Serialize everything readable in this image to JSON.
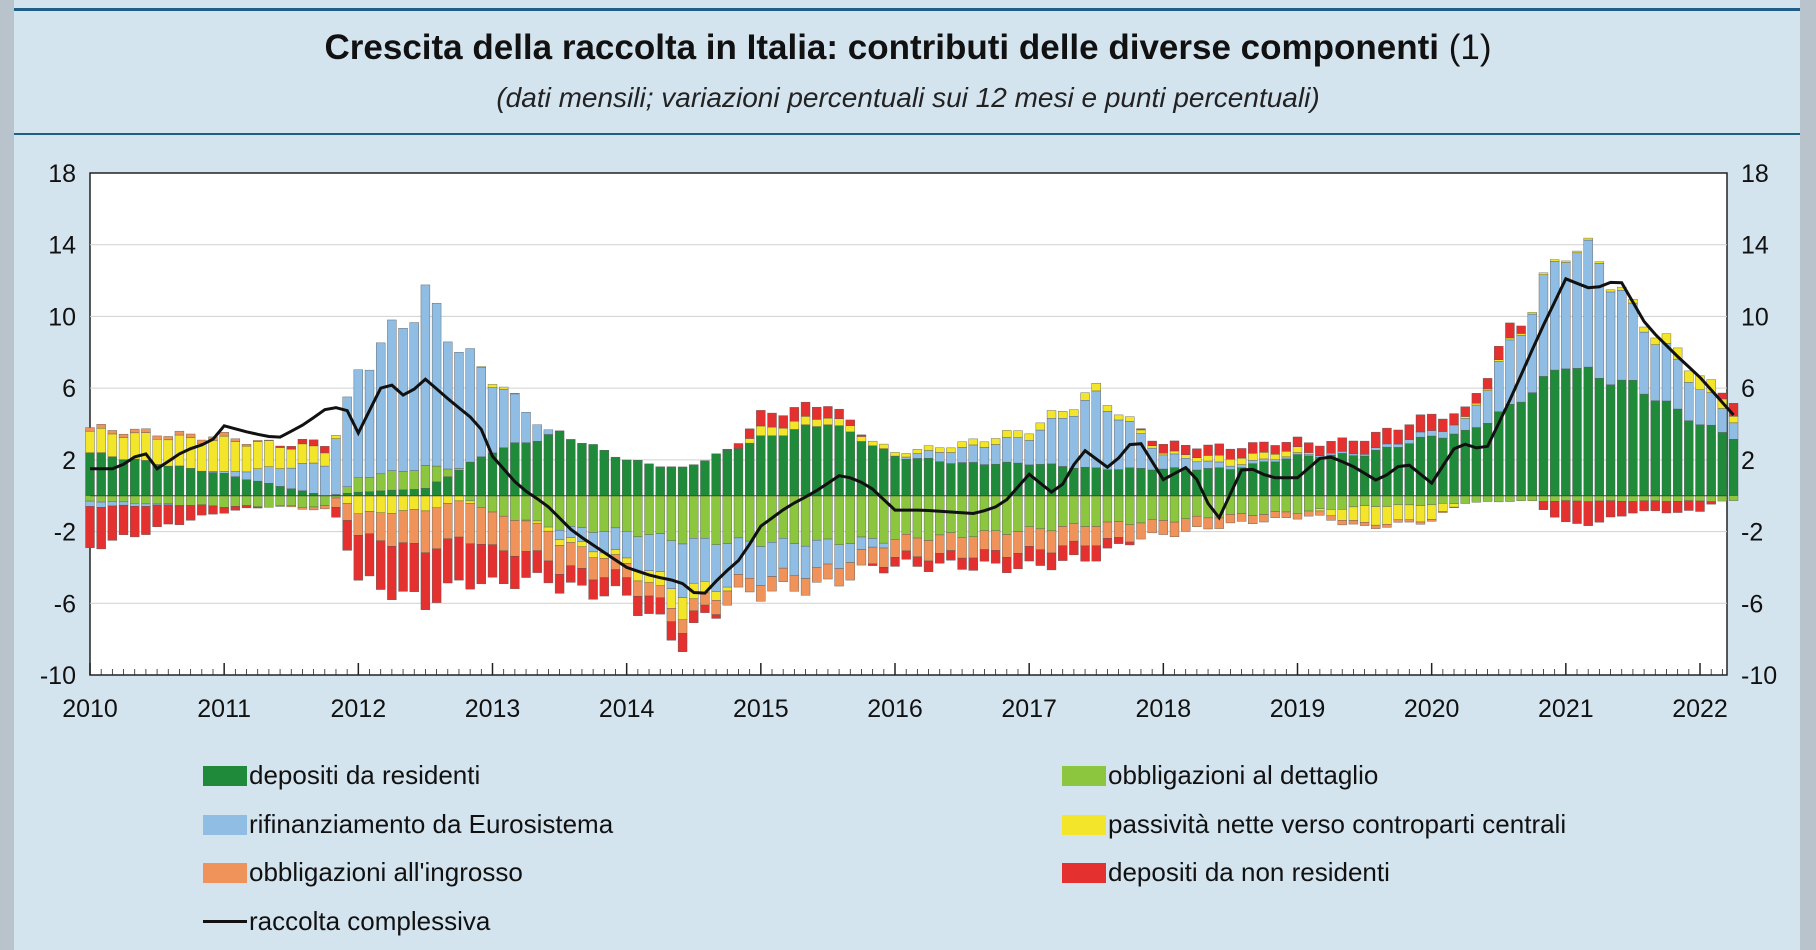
{
  "title": "Crescita della raccolta in Italia: contributi delle diverse componenti",
  "title_note": "(1)",
  "subtitle": "(dati mensili; variazioni percentuali sui 12 mesi e punti percentuali)",
  "legend": [
    {
      "key": "dep_res",
      "label": "depositi da residenti",
      "color": "#1f8a3a",
      "kind": "bar"
    },
    {
      "key": "obb_det",
      "label": "obbligazioni al dettaglio",
      "color": "#8cc63f",
      "kind": "bar"
    },
    {
      "key": "rifin",
      "label": "rifinanziamento da Eurosistema",
      "color": "#8fbde3",
      "kind": "bar"
    },
    {
      "key": "cc",
      "label": "passività nette verso controparti centrali",
      "color": "#f2e52a",
      "kind": "bar"
    },
    {
      "key": "obb_ing",
      "label": "obbligazioni all'ingrosso",
      "color": "#f0935a",
      "kind": "bar"
    },
    {
      "key": "dep_nonres",
      "label": "depositi da non residenti",
      "color": "#e53030",
      "kind": "bar"
    },
    {
      "key": "tot",
      "label": "raccolta complessiva",
      "color": "#111111",
      "kind": "line"
    }
  ],
  "chart_data": {
    "type": "bar",
    "stacked": true,
    "x_ticks": [
      "2010",
      "2011",
      "2012",
      "2013",
      "2014",
      "2015",
      "2016",
      "2017",
      "2018",
      "2019",
      "2020",
      "2021",
      "2022"
    ],
    "ylim": [
      -10,
      18
    ],
    "y_ticks": [
      18,
      14,
      10,
      6,
      2,
      -2,
      -6,
      -10
    ],
    "y_axis_sides": "left and right",
    "legend_position": "bottom",
    "months_per_year": 12,
    "series_order": [
      "dep_res",
      "obb_det",
      "rifin",
      "cc",
      "obb_ing",
      "dep_nonres"
    ],
    "series": [
      {
        "name": "depositi da residenti",
        "key": "dep_res",
        "x": [
          2010,
          2011,
          2011.75,
          2012,
          2012.5,
          2013,
          2013.5,
          2014,
          2014.4,
          2015,
          2015.5,
          2016,
          2016.5,
          2017,
          2017.5,
          2018,
          2018.5,
          2019,
          2019.5,
          2020,
          2020.25,
          2020.6,
          2021,
          2021.25,
          2021.5,
          2022,
          2022.25
        ],
        "values": [
          2.4,
          1.2,
          0.0,
          0.2,
          0.4,
          2.5,
          3.5,
          2.0,
          1.5,
          3.2,
          4.1,
          2.2,
          1.8,
          1.8,
          1.5,
          1.5,
          1.5,
          2.2,
          2.3,
          3.3,
          3.5,
          5.0,
          7.4,
          6.6,
          6.2,
          4.0,
          3.3
        ]
      },
      {
        "name": "obbligazioni al dettaglio",
        "key": "obb_det",
        "x": [
          2010,
          2011,
          2011.75,
          2012,
          2012.5,
          2013,
          2013.5,
          2014,
          2014.4,
          2015,
          2015.5,
          2016,
          2016.5,
          2017,
          2017.5,
          2018,
          2018.5,
          2019,
          2019.5,
          2020,
          2020.25,
          2020.6,
          2021,
          2021.25,
          2021.5,
          2022,
          2022.25
        ],
        "values": [
          -0.3,
          -0.6,
          -0.6,
          0.8,
          1.2,
          -1.0,
          -1.8,
          -2.0,
          -2.5,
          -2.6,
          -2.6,
          -2.4,
          -2.2,
          -1.9,
          -1.6,
          -1.4,
          -1.1,
          -0.9,
          -0.6,
          -0.5,
          -0.4,
          -0.3,
          -0.3,
          -0.3,
          -0.3,
          -0.3,
          -0.3
        ]
      },
      {
        "name": "rifinanziamento da Eurosistema",
        "key": "rifin",
        "x": [
          2010,
          2011,
          2011.75,
          2012,
          2012.5,
          2013,
          2013.5,
          2014,
          2014.4,
          2015,
          2015.5,
          2016,
          2016.5,
          2017,
          2017.5,
          2018,
          2018.5,
          2019,
          2019.5,
          2020,
          2020.25,
          2020.6,
          2021,
          2021.25,
          2021.5,
          2022,
          2022.25
        ],
        "values": [
          -0.3,
          0.1,
          1.8,
          6.0,
          9.5,
          4.0,
          -0.5,
          -1.5,
          -2.8,
          -2.0,
          -1.5,
          0.0,
          0.8,
          1.5,
          4.0,
          0.8,
          0.2,
          0.1,
          0.1,
          0.3,
          0.6,
          3.5,
          6.5,
          6.5,
          4.0,
          2.0,
          1.0
        ]
      },
      {
        "name": "passività nette verso controparti centrali",
        "key": "cc",
        "x": [
          2010,
          2011,
          2011.75,
          2012,
          2012.5,
          2013,
          2013.5,
          2014,
          2014.4,
          2015,
          2015.5,
          2016,
          2016.5,
          2017,
          2017.5,
          2018,
          2018.5,
          2019,
          2019.5,
          2020,
          2020.25,
          2020.6,
          2021,
          2021.25,
          2021.5,
          2022,
          2022.25
        ],
        "values": [
          1.2,
          1.8,
          0.8,
          -1.0,
          -0.8,
          0.2,
          -0.3,
          -0.3,
          -1.2,
          0.5,
          0.4,
          0.2,
          0.3,
          0.4,
          0.4,
          0.1,
          0.4,
          0.3,
          -1.0,
          -0.8,
          0.1,
          0.1,
          0.1,
          0.1,
          0.2,
          0.8,
          0.4
        ]
      },
      {
        "name": "obbligazioni all'ingrosso",
        "key": "obb_ing",
        "x": [
          2010,
          2011,
          2011.75,
          2012,
          2012.5,
          2013,
          2013.5,
          2014,
          2014.4,
          2015,
          2015.5,
          2016,
          2016.5,
          2017,
          2017.5,
          2018,
          2018.5,
          2019,
          2019.5,
          2020,
          2020.25,
          2020.6,
          2021,
          2021.25,
          2021.5,
          2022,
          2022.25
        ],
        "values": [
          0.2,
          0.2,
          -0.2,
          -1.2,
          -2.2,
          -2.0,
          -1.5,
          -0.8,
          -0.7,
          -0.8,
          -0.9,
          -1.0,
          -1.1,
          -1.2,
          -1.0,
          -0.8,
          -0.5,
          -0.3,
          -0.2,
          -0.1,
          0.0,
          0.0,
          0.0,
          0.0,
          0.0,
          0.0,
          0.0
        ]
      },
      {
        "name": "depositi da non residenti",
        "key": "dep_nonres",
        "x": [
          2010,
          2011,
          2011.75,
          2012,
          2012.5,
          2013,
          2013.5,
          2014,
          2014.4,
          2015,
          2015.5,
          2016,
          2016.5,
          2017,
          2017.5,
          2018,
          2018.5,
          2019,
          2019.5,
          2020,
          2020.25,
          2020.6,
          2021,
          2021.25,
          2021.5,
          2022,
          2022.25
        ],
        "values": [
          -2.3,
          -0.3,
          0.4,
          -2.5,
          -3.0,
          -2.0,
          -1.0,
          -1.0,
          -1.0,
          0.8,
          0.7,
          -0.5,
          -0.6,
          -0.9,
          -0.8,
          0.5,
          0.6,
          0.5,
          0.8,
          0.9,
          0.5,
          0.8,
          -1.3,
          -1.2,
          -0.6,
          -0.6,
          0.8
        ]
      },
      {
        "name": "raccolta complessiva",
        "key": "tot",
        "type": "line",
        "x": [
          2010,
          2010.2,
          2010.4,
          2010.5,
          2010.7,
          2010.9,
          2011,
          2011.2,
          2011.4,
          2011.6,
          2011.75,
          2011.9,
          2012,
          2012.2,
          2012.35,
          2012.5,
          2012.7,
          2012.9,
          2013,
          2013.2,
          2013.4,
          2013.6,
          2013.8,
          2014,
          2014.2,
          2014.4,
          2014.55,
          2014.7,
          2014.85,
          2015,
          2015.2,
          2015.4,
          2015.6,
          2015.8,
          2016,
          2016.2,
          2016.4,
          2016.6,
          2016.8,
          2017,
          2017.2,
          2017.4,
          2017.6,
          2017.8,
          2018,
          2018.2,
          2018.4,
          2018.6,
          2018.8,
          2019,
          2019.2,
          2019.4,
          2019.6,
          2019.8,
          2020,
          2020.2,
          2020.4,
          2020.6,
          2020.8,
          2021,
          2021.2,
          2021.4,
          2021.6,
          2021.8,
          2022,
          2022.25
        ],
        "values": [
          1.5,
          1.5,
          2.5,
          1.5,
          2.5,
          3.0,
          3.9,
          3.5,
          3.2,
          4.0,
          4.8,
          5.0,
          3.5,
          6.5,
          5.5,
          6.5,
          5.2,
          4.0,
          2.2,
          0.5,
          -0.5,
          -2.0,
          -3.0,
          -4.0,
          -4.5,
          -4.8,
          -5.7,
          -4.5,
          -3.5,
          -1.7,
          -0.6,
          0.2,
          1.2,
          0.6,
          -0.8,
          -0.8,
          -0.9,
          -1.0,
          -0.5,
          1.2,
          0.0,
          2.6,
          1.5,
          3.3,
          0.9,
          1.7,
          -1.5,
          1.7,
          1.0,
          1.0,
          2.3,
          1.7,
          0.8,
          1.9,
          0.7,
          3.0,
          2.5,
          5.6,
          9.0,
          12.1,
          11.5,
          12.1,
          9.5,
          8.0,
          6.6,
          4.5
        ]
      }
    ]
  }
}
